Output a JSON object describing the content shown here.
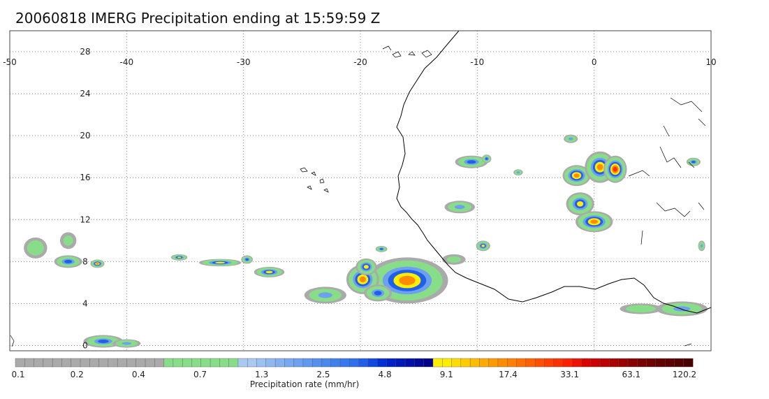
{
  "title": "20060818 IMERG Precipitation ending at 15:59:59 Z",
  "map": {
    "lon_range": [
      -50,
      10
    ],
    "lat_range": [
      -0.5,
      30
    ],
    "lon_ticks": [
      -50,
      -40,
      -30,
      -20,
      -10,
      0,
      10
    ],
    "lat_ticks": [
      0,
      4,
      8,
      12,
      16,
      20,
      24,
      28
    ],
    "grid": true
  },
  "precip_cells": [
    {
      "lon": -16.0,
      "lat": 6.2,
      "rlon": 3.5,
      "rlat": 2.2,
      "max": 28
    },
    {
      "lon": -19.8,
      "lat": 6.3,
      "rlon": 1.4,
      "rlat": 1.4,
      "max": 25
    },
    {
      "lon": -19.5,
      "lat": 7.5,
      "rlon": 0.9,
      "rlat": 0.8,
      "max": 12
    },
    {
      "lon": -18.5,
      "lat": 5.0,
      "rlon": 1.2,
      "rlat": 0.8,
      "max": 6
    },
    {
      "lon": -23.0,
      "lat": 4.8,
      "rlon": 1.8,
      "rlat": 0.8,
      "max": 2.0
    },
    {
      "lon": -27.8,
      "lat": 7.0,
      "rlon": 1.3,
      "rlat": 0.5,
      "max": 14
    },
    {
      "lon": -32.0,
      "lat": 7.9,
      "rlon": 1.8,
      "rlat": 0.35,
      "max": 12
    },
    {
      "lon": -35.5,
      "lat": 8.4,
      "rlon": 0.7,
      "rlat": 0.3,
      "max": 8
    },
    {
      "lon": -29.7,
      "lat": 8.2,
      "rlon": 0.5,
      "rlat": 0.4,
      "max": 4
    },
    {
      "lon": -42.5,
      "lat": 7.8,
      "rlon": 0.6,
      "rlat": 0.4,
      "max": 20
    },
    {
      "lon": -45.0,
      "lat": 8.0,
      "rlon": 1.2,
      "rlat": 0.6,
      "max": 4
    },
    {
      "lon": -47.8,
      "lat": 9.3,
      "rlon": 1.0,
      "rlat": 1.0,
      "max": 1.2
    },
    {
      "lon": -45.0,
      "lat": 10.0,
      "rlon": 0.7,
      "rlat": 0.8,
      "max": 0.8
    },
    {
      "lon": -42.0,
      "lat": 0.4,
      "rlon": 1.7,
      "rlat": 0.6,
      "max": 4
    },
    {
      "lon": -40.0,
      "lat": 0.2,
      "rlon": 1.2,
      "rlat": 0.4,
      "max": 2
    },
    {
      "lon": -18.2,
      "lat": 9.2,
      "rlon": 0.5,
      "rlat": 0.3,
      "max": 4
    },
    {
      "lon": -10.5,
      "lat": 17.5,
      "rlon": 1.4,
      "rlat": 0.6,
      "max": 5
    },
    {
      "lon": -9.2,
      "lat": 17.8,
      "rlon": 0.4,
      "rlat": 0.4,
      "max": 4
    },
    {
      "lon": -9.5,
      "lat": 9.5,
      "rlon": 0.6,
      "rlat": 0.5,
      "max": 8
    },
    {
      "lon": -11.5,
      "lat": 13.2,
      "rlon": 1.3,
      "rlat": 0.6,
      "max": 2
    },
    {
      "lon": -6.5,
      "lat": 16.5,
      "rlon": 0.4,
      "rlat": 0.3,
      "max": 2
    },
    {
      "lon": -1.5,
      "lat": 16.2,
      "rlon": 1.2,
      "rlat": 1.0,
      "max": 18
    },
    {
      "lon": 0.5,
      "lat": 17.0,
      "rlon": 1.3,
      "rlat": 1.5,
      "max": 28
    },
    {
      "lon": 1.8,
      "lat": 16.8,
      "rlon": 1.0,
      "rlat": 1.3,
      "max": 30
    },
    {
      "lon": -1.2,
      "lat": 13.5,
      "rlon": 1.2,
      "rlat": 1.1,
      "max": 15
    },
    {
      "lon": 0.0,
      "lat": 11.8,
      "rlon": 1.6,
      "rlat": 1.0,
      "max": 20
    },
    {
      "lon": -2.0,
      "lat": 19.7,
      "rlon": 0.6,
      "rlat": 0.4,
      "max": 2
    },
    {
      "lon": 8.5,
      "lat": 17.5,
      "rlon": 0.6,
      "rlat": 0.4,
      "max": 4
    },
    {
      "lon": 9.2,
      "lat": 9.5,
      "rlon": 0.3,
      "rlat": 0.5,
      "max": 3
    },
    {
      "lon": 7.5,
      "lat": 3.5,
      "rlon": 2.2,
      "rlat": 0.7,
      "max": 2
    },
    {
      "lon": 4.0,
      "lat": 3.5,
      "rlon": 1.8,
      "rlat": 0.5,
      "max": 1.5
    },
    {
      "lon": -12.0,
      "lat": 8.2,
      "rlon": 1.0,
      "rlat": 0.5,
      "max": 0.6
    }
  ],
  "colorbar": {
    "colors": [
      "#aaaaaa",
      "#aaaaaa",
      "#aaaaaa",
      "#aaaaaa",
      "#aaaaaa",
      "#aaaaaa",
      "#aaaaaa",
      "#aaaaaa",
      "#aaaaaa",
      "#aaaaaa",
      "#aaaaaa",
      "#aaaaaa",
      "#aaaaaa",
      "#aaaaaa",
      "#aaaaaa",
      "#aaaaaa",
      "#88dd88",
      "#88dd88",
      "#88dd88",
      "#88dd88",
      "#88dd88",
      "#88dd88",
      "#88dd88",
      "#88dd88",
      "#aac8f0",
      "#aac8f0",
      "#9cc0f0",
      "#90b8f0",
      "#84b0f0",
      "#7aa8f0",
      "#6ea0f0",
      "#6098f0",
      "#5590f0",
      "#4a88ee",
      "#4080ee",
      "#3878ee",
      "#3070ec",
      "#2060e8",
      "#1048e0",
      "#0030d8",
      "#0020c8",
      "#0018b8",
      "#0010a8",
      "#000898",
      "#000088",
      "#ffee00",
      "#ffee00",
      "#ffdd00",
      "#ffcc00",
      "#ffbb00",
      "#ffaa00",
      "#ff9900",
      "#ff8c00",
      "#ff8000",
      "#ff7000",
      "#ff6000",
      "#ff5000",
      "#ff4000",
      "#ff3000",
      "#ff2000",
      "#ee1000",
      "#dd0000",
      "#cc0000",
      "#bb0000",
      "#aa0000",
      "#990000",
      "#880000",
      "#7a0000",
      "#6e0000",
      "#620000",
      "#5a0000",
      "#520000",
      "#4a0000"
    ],
    "labels": [
      "0.1",
      "0.2",
      "0.4",
      "0.7",
      "1.3",
      "2.5",
      "4.8",
      "9.1",
      "17.4",
      "33.1",
      "63.1",
      "120.2"
    ],
    "unit": "Precipitation rate (mm/hr)"
  }
}
